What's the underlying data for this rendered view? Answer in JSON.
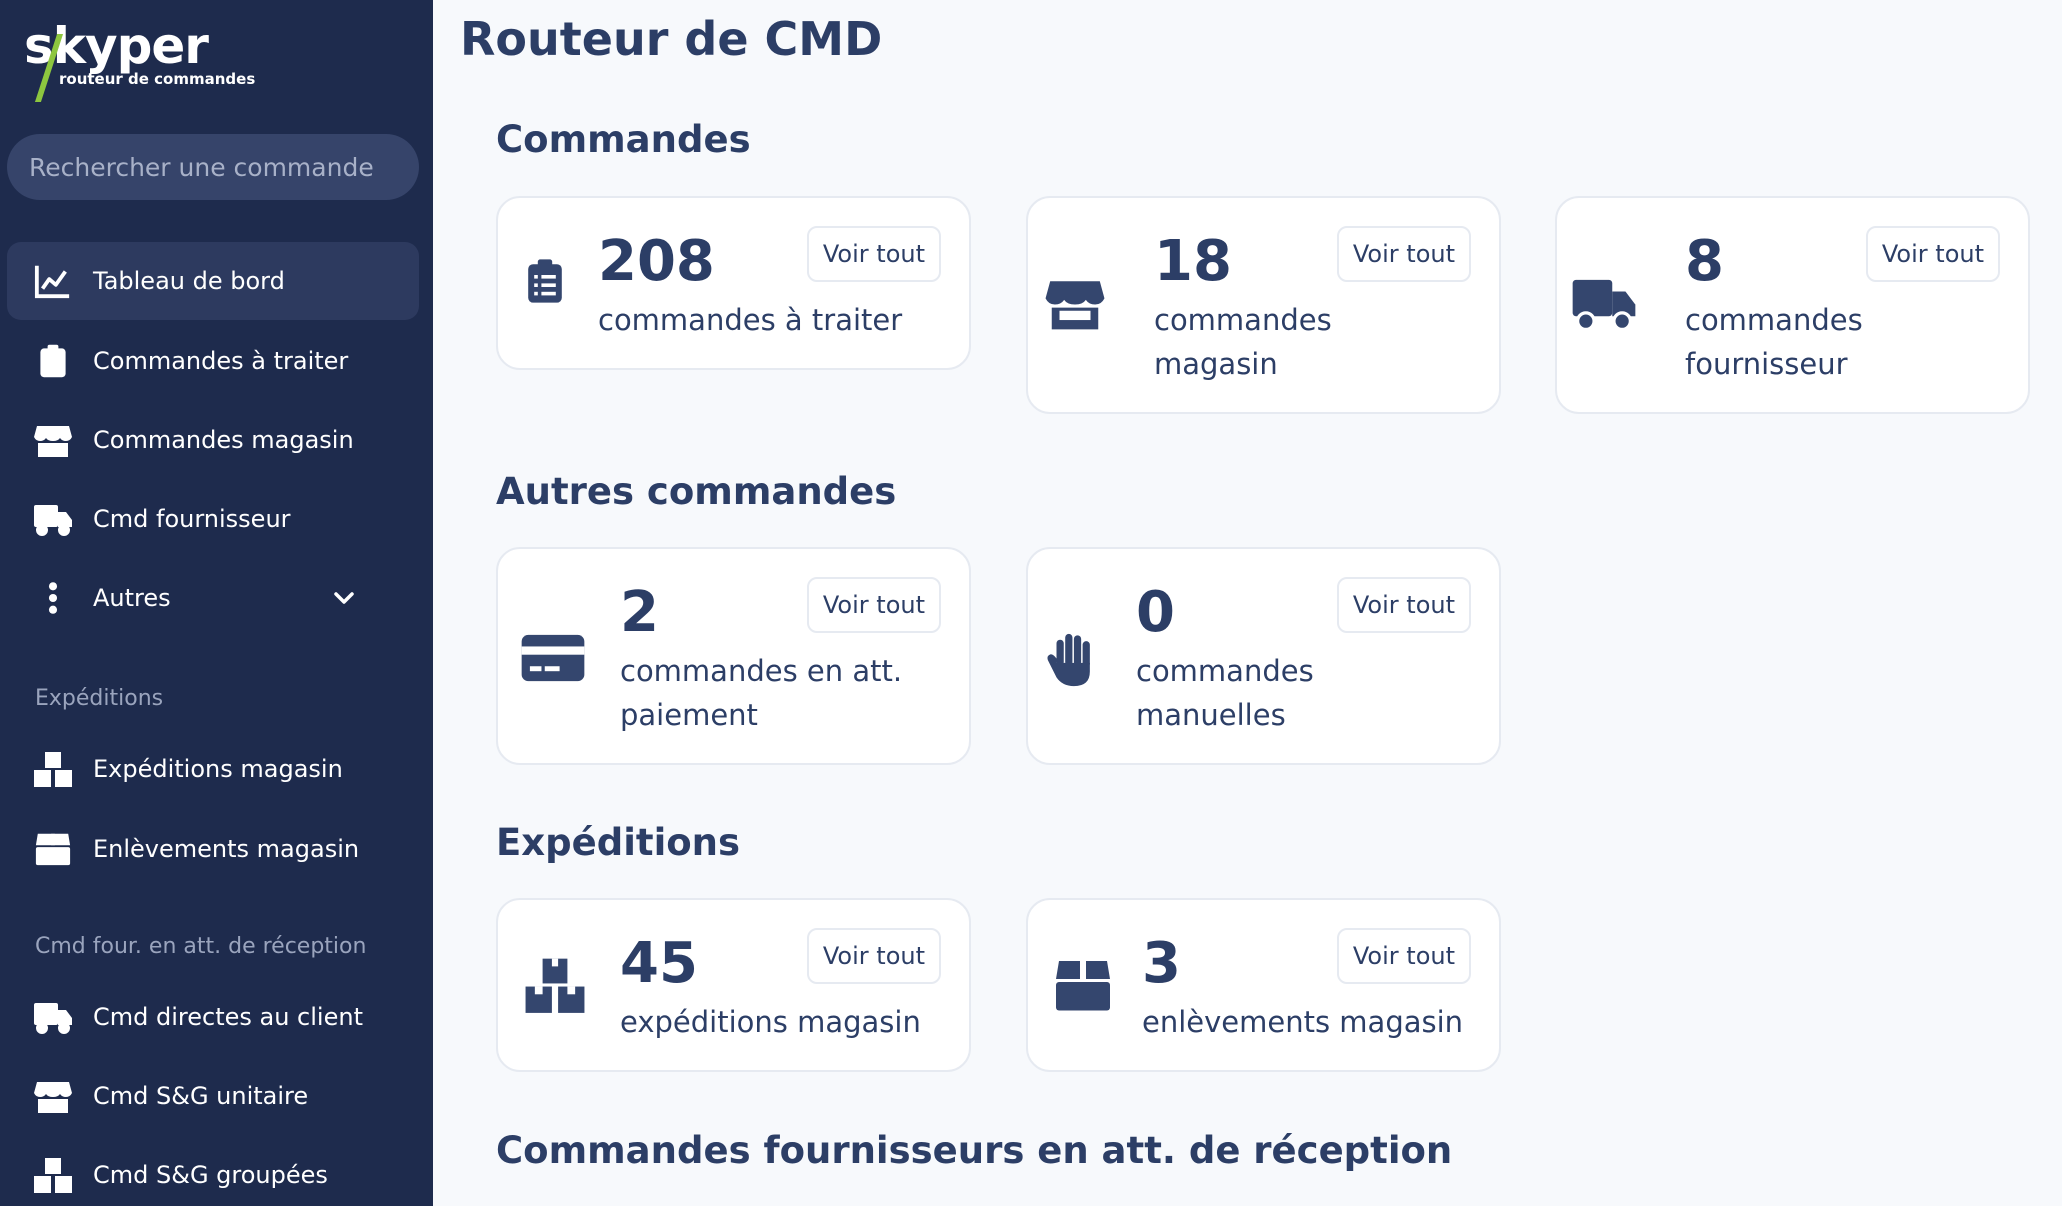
{
  "app": {
    "logo_text": "skyper",
    "logo_subtitle": "routeur de commandes",
    "accent_color": "#8dc63f",
    "sidebar_bg": "#1e2b4d",
    "text_color": "#2c3e66"
  },
  "search": {
    "placeholder": "Rechercher une commande"
  },
  "sidebar": {
    "items": [
      {
        "label": "Tableau de bord",
        "icon": "chart-line-icon",
        "active": true
      },
      {
        "label": "Commandes à traiter",
        "icon": "clipboard-list-icon"
      },
      {
        "label": "Commandes magasin",
        "icon": "store-icon"
      },
      {
        "label": "Cmd fournisseur",
        "icon": "truck-icon"
      },
      {
        "label": "Autres",
        "icon": "vertical-dots-icon",
        "expandable": true
      }
    ],
    "section_expeditions": "Expéditions",
    "expeditions_items": [
      {
        "label": "Expéditions magasin",
        "icon": "boxes-icon"
      },
      {
        "label": "Enlèvements magasin",
        "icon": "box-icon"
      }
    ],
    "section_cmd_four": "Cmd four. en att. de réception",
    "cmd_four_items": [
      {
        "label": "Cmd directes au client",
        "icon": "truck-icon"
      },
      {
        "label": "Cmd S&G unitaire",
        "icon": "store-icon"
      },
      {
        "label": "Cmd S&G groupées",
        "icon": "boxes-icon"
      }
    ]
  },
  "main": {
    "title": "Routeur de CMD",
    "voir_tout": "Voir tout",
    "sections": {
      "commandes": "Commandes",
      "autres": "Autres commandes",
      "expeditions": "Expéditions",
      "fournisseurs": "Commandes fournisseurs en att. de réception"
    },
    "cards": {
      "a_traiter": {
        "value": "208",
        "label": "commandes à traiter",
        "icon": "clipboard-list-icon"
      },
      "magasin": {
        "value": "18",
        "label": "commandes magasin",
        "icon": "store-icon"
      },
      "fournisseur": {
        "value": "8",
        "label": "commandes fournisseur",
        "icon": "truck-icon"
      },
      "att_paiement": {
        "value": "2",
        "label": "commandes en att. paiement",
        "icon": "credit-card-icon"
      },
      "manuelles": {
        "value": "0",
        "label": "commandes manuelles",
        "icon": "hand-icon"
      },
      "exp_magasin": {
        "value": "45",
        "label": "expéditions magasin",
        "icon": "boxes-icon"
      },
      "enl_magasin": {
        "value": "3",
        "label": "enlèvements magasin",
        "icon": "box-icon"
      }
    }
  }
}
